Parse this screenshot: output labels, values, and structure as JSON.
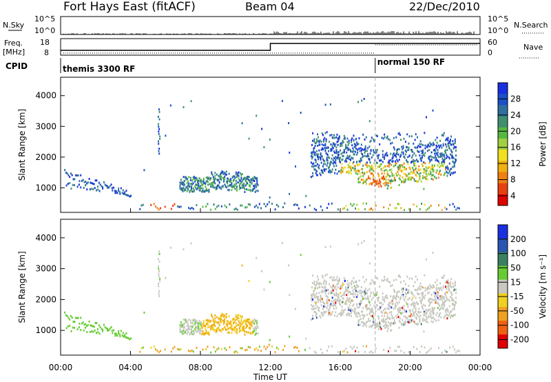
{
  "header": {
    "station": "Fort Hays East (fitACF)",
    "beam": "Beam 04",
    "date": "22/Dec/2010"
  },
  "top_panels": {
    "nsky_label": "N.Sky",
    "nsky_ticks": [
      "10^5",
      "10^0"
    ],
    "nsearch_label": "N.Search",
    "freq_label": "Freq.",
    "freq_unit": "[MHz]",
    "freq_ticks": [
      "18",
      "8"
    ],
    "nave_label": "Nave",
    "nave_ticks": [
      "60",
      "0"
    ],
    "cpid_label": "CPID",
    "cpid_segments": [
      {
        "label": "themis 3300 RF",
        "start_hour": 0,
        "end_hour": 18
      },
      {
        "label": "normal 150 RF",
        "start_hour": 18,
        "end_hour": 24
      }
    ]
  },
  "colors": {
    "power": [
      "#1a2fe0",
      "#1a50c8",
      "#2f6f9e",
      "#3f8f6f",
      "#55b840",
      "#a0d040",
      "#f0e020",
      "#f0b010",
      "#f08010",
      "#e84010",
      "#e00000"
    ],
    "velocity": [
      "#1a2fe0",
      "#2a55b0",
      "#3a8060",
      "#66cc33",
      "#c8c8c0",
      "#f0d020",
      "#f0a020",
      "#f06010",
      "#e00000"
    ],
    "gray": "#c8c8c0"
  },
  "chart_data": [
    {
      "type": "heatmap",
      "name": "power",
      "ylabel": "Slant Range [km]",
      "yticks": [
        1000,
        2000,
        3000,
        4000
      ],
      "ylim": [
        200,
        4600
      ],
      "xlim": [
        0,
        24
      ],
      "colorbar_label": "Power [dB]",
      "colorbar_ticks": [
        "28",
        "24",
        "20",
        "16",
        "12",
        "8",
        "4"
      ],
      "colorbar_range": [
        0,
        32
      ]
    },
    {
      "type": "heatmap",
      "name": "velocity",
      "ylabel": "Slant Range [km]",
      "yticks": [
        1000,
        2000,
        3000,
        4000
      ],
      "ylim": [
        200,
        4600
      ],
      "xlim": [
        0,
        24
      ],
      "colorbar_label": "Velocity [m s⁻¹]",
      "colorbar_ticks": [
        "200",
        "100",
        "50",
        "15",
        "-15",
        "-50",
        "-100",
        "-200"
      ]
    }
  ],
  "xaxis": {
    "ticks": [
      "00:00",
      "04:00",
      "08:00",
      "12:00",
      "16:00",
      "20:00",
      "00:00"
    ],
    "tick_hours": [
      0,
      4,
      8,
      12,
      16,
      20,
      24
    ],
    "label": "Time UT"
  }
}
